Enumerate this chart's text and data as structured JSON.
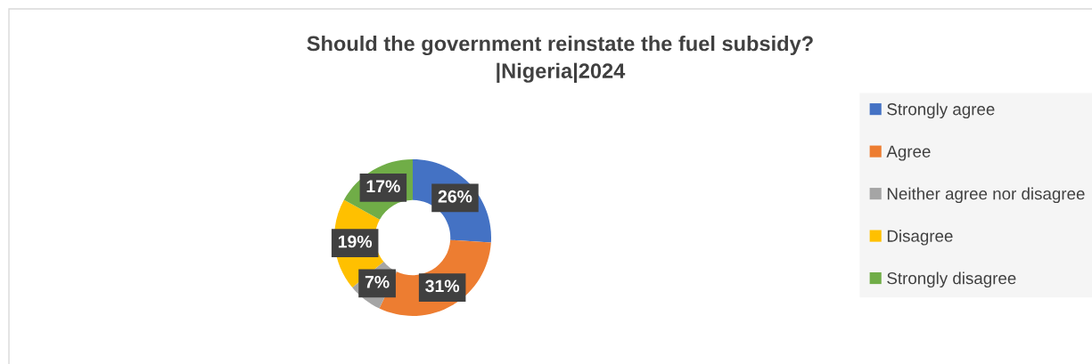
{
  "chart_data": {
    "type": "donut",
    "title": "Should the government reinstate the fuel subsidy?\n|Nigeria|2024",
    "categories": [
      "Strongly agree",
      "Agree",
      "Neither agree nor disagree",
      "Disagree",
      "Strongly disagree"
    ],
    "values": [
      26,
      31,
      7,
      19,
      17
    ],
    "colors": [
      "#4472c4",
      "#ed7d31",
      "#a5a5a5",
      "#ffc000",
      "#70ad47"
    ],
    "value_labels": [
      "26%",
      "31%",
      "7%",
      "19%",
      "17%"
    ],
    "legend": "right"
  }
}
